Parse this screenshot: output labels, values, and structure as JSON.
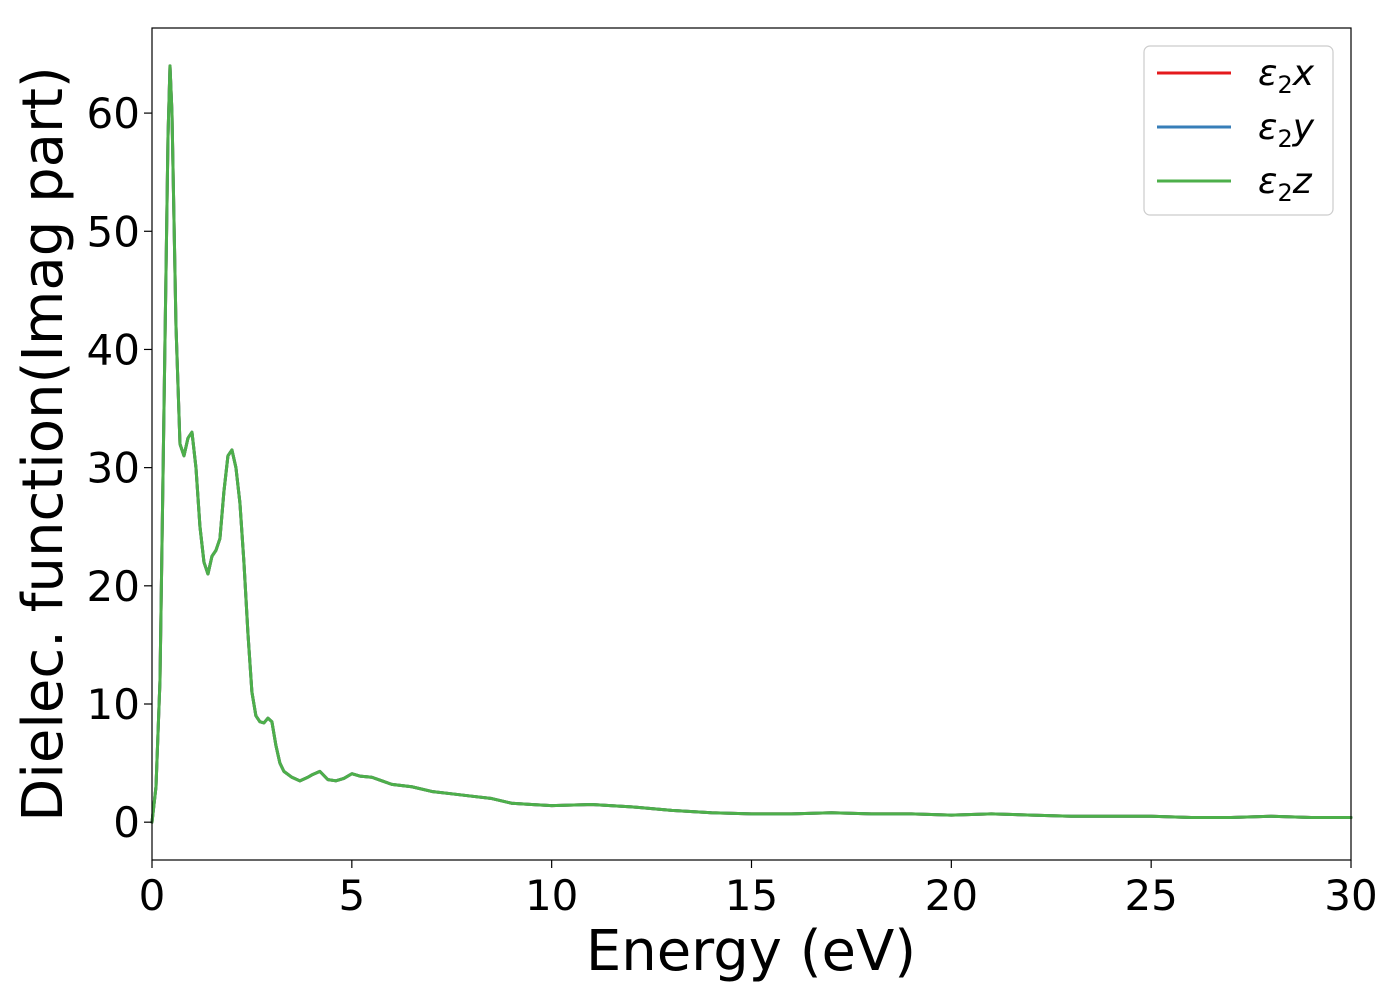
{
  "chart_data": {
    "type": "line",
    "xlabel": "Energy (eV)",
    "ylabel": "Dielec. function(Imag part)",
    "xlim": [
      0,
      30
    ],
    "ylim": [
      -3.2,
      67.2
    ],
    "xticks": [
      0,
      5,
      10,
      15,
      20,
      25,
      30
    ],
    "yticks": [
      0,
      10,
      20,
      30,
      40,
      50,
      60
    ],
    "grid": false,
    "legend_position": "top-right",
    "x": [
      0,
      0.1,
      0.2,
      0.3,
      0.4,
      0.45,
      0.5,
      0.6,
      0.7,
      0.8,
      0.9,
      1.0,
      1.1,
      1.2,
      1.3,
      1.4,
      1.5,
      1.6,
      1.7,
      1.8,
      1.9,
      2.0,
      2.1,
      2.2,
      2.3,
      2.4,
      2.5,
      2.6,
      2.7,
      2.8,
      2.9,
      3.0,
      3.1,
      3.2,
      3.3,
      3.5,
      3.7,
      3.9,
      4.0,
      4.2,
      4.4,
      4.6,
      4.8,
      5.0,
      5.2,
      5.5,
      6.0,
      6.5,
      7.0,
      7.5,
      8.0,
      8.5,
      9.0,
      9.5,
      10.0,
      11.0,
      12.0,
      13.0,
      14.0,
      15.0,
      16.0,
      17.0,
      18.0,
      19.0,
      20.0,
      21.0,
      22.0,
      23.0,
      24.0,
      25.0,
      26.0,
      27.0,
      28.0,
      29.0,
      30.0
    ],
    "series": [
      {
        "name": "ε₂x",
        "color": "#e41a1c",
        "values": [
          0,
          3,
          12,
          35,
          58,
          64,
          60,
          42,
          32,
          31,
          32.5,
          33,
          30,
          25,
          22,
          21,
          22.5,
          23,
          24,
          28,
          31,
          31.5,
          30,
          27,
          22,
          16,
          11,
          9,
          8.5,
          8.4,
          8.8,
          8.5,
          6.5,
          5,
          4.3,
          3.8,
          3.5,
          3.8,
          4,
          4.3,
          3.6,
          3.5,
          3.7,
          4.1,
          3.9,
          3.8,
          3.2,
          3,
          2.6,
          2.4,
          2.2,
          2,
          1.6,
          1.5,
          1.4,
          1.5,
          1.3,
          1,
          0.8,
          0.7,
          0.7,
          0.8,
          0.7,
          0.7,
          0.6,
          0.7,
          0.6,
          0.5,
          0.5,
          0.5,
          0.4,
          0.4,
          0.5,
          0.4,
          0.4
        ]
      },
      {
        "name": "ε₂y",
        "color": "#377eb8",
        "values": [
          0,
          3,
          12,
          35,
          58,
          64,
          60,
          42,
          32,
          31,
          32.5,
          33,
          30,
          25,
          22,
          21,
          22.5,
          23,
          24,
          28,
          31,
          31.5,
          30,
          27,
          22,
          16,
          11,
          9,
          8.5,
          8.4,
          8.8,
          8.5,
          6.5,
          5,
          4.3,
          3.8,
          3.5,
          3.8,
          4,
          4.3,
          3.6,
          3.5,
          3.7,
          4.1,
          3.9,
          3.8,
          3.2,
          3,
          2.6,
          2.4,
          2.2,
          2,
          1.6,
          1.5,
          1.4,
          1.5,
          1.3,
          1,
          0.8,
          0.7,
          0.7,
          0.8,
          0.7,
          0.7,
          0.6,
          0.7,
          0.6,
          0.5,
          0.5,
          0.5,
          0.4,
          0.4,
          0.5,
          0.4,
          0.4
        ]
      },
      {
        "name": "ε₂z",
        "color": "#4daf4a",
        "values": [
          0,
          3,
          12,
          35,
          58,
          64,
          60,
          42,
          32,
          31,
          32.5,
          33,
          30,
          25,
          22,
          21,
          22.5,
          23,
          24,
          28,
          31,
          31.5,
          30,
          27,
          22,
          16,
          11,
          9,
          8.5,
          8.4,
          8.8,
          8.5,
          6.5,
          5,
          4.3,
          3.8,
          3.5,
          3.8,
          4,
          4.3,
          3.6,
          3.5,
          3.7,
          4.1,
          3.9,
          3.8,
          3.2,
          3,
          2.6,
          2.4,
          2.2,
          2,
          1.6,
          1.5,
          1.4,
          1.5,
          1.3,
          1,
          0.8,
          0.7,
          0.7,
          0.8,
          0.7,
          0.7,
          0.6,
          0.7,
          0.6,
          0.5,
          0.5,
          0.5,
          0.4,
          0.4,
          0.5,
          0.4,
          0.4
        ]
      }
    ],
    "legend": [
      {
        "base": "ε",
        "sub": "2",
        "suffix": "x"
      },
      {
        "base": "ε",
        "sub": "2",
        "suffix": "y"
      },
      {
        "base": "ε",
        "sub": "2",
        "suffix": "z"
      }
    ]
  }
}
